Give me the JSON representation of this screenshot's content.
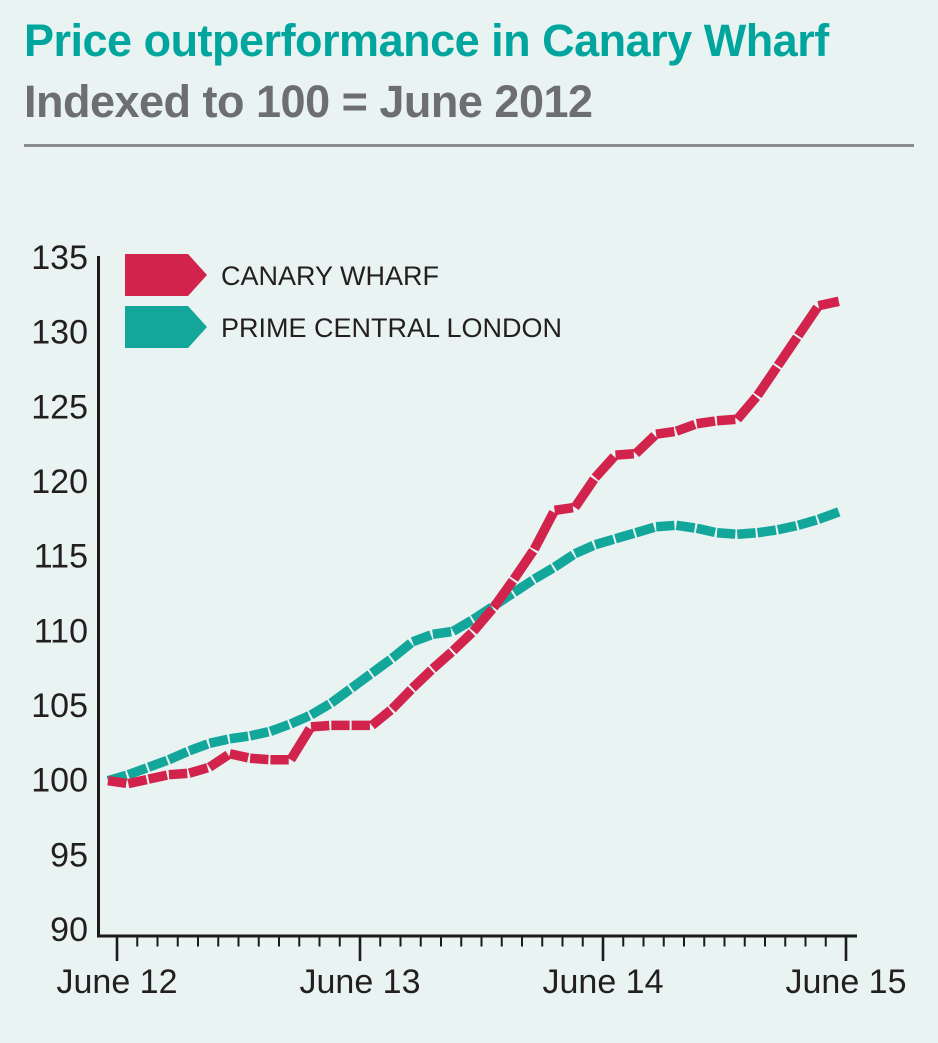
{
  "page": {
    "background": "#e8f3f2"
  },
  "header": {
    "title": "Price outperformance in Canary Wharf",
    "subtitle": "Indexed to 100 = June 2012",
    "title_color": "#00a69d",
    "subtitle_color": "#6d6e71"
  },
  "chart_data": {
    "type": "line",
    "title": "Price outperformance in Canary Wharf",
    "subtitle": "Indexed to 100 = June 2012",
    "grid": false,
    "legend_position": "top-left",
    "ylim": [
      90,
      135
    ],
    "ytick_step": 5,
    "yticks": [
      90,
      95,
      100,
      105,
      110,
      115,
      120,
      125,
      130,
      135
    ],
    "xticks": [
      "June 12",
      "June 13",
      "June 14",
      "June 15"
    ],
    "x_minor_tick_unit": "month",
    "x": [
      "Jun 2012",
      "Jul 2012",
      "Aug 2012",
      "Sep 2012",
      "Oct 2012",
      "Nov 2012",
      "Dec 2012",
      "Jan 2013",
      "Feb 2013",
      "Mar 2013",
      "Apr 2013",
      "May 2013",
      "Jun 2013",
      "Jul 2013",
      "Aug 2013",
      "Sep 2013",
      "Oct 2013",
      "Nov 2013",
      "Dec 2013",
      "Jan 2014",
      "Feb 2014",
      "Mar 2014",
      "Apr 2014",
      "May 2014",
      "Jun 2014",
      "Jul 2014",
      "Aug 2014",
      "Sep 2014",
      "Oct 2014",
      "Nov 2014",
      "Dec 2014",
      "Jan 2015",
      "Feb 2015",
      "Mar 2015",
      "Apr 2015",
      "May 2015",
      "Jun 2015"
    ],
    "series": [
      {
        "name": "CANARY WHARF",
        "color": "#d2234d",
        "values": [
          100.0,
          99.8,
          100.1,
          100.4,
          100.5,
          100.9,
          101.8,
          101.5,
          101.4,
          101.4,
          103.6,
          103.7,
          103.7,
          103.7,
          104.8,
          106.2,
          107.5,
          108.7,
          110.0,
          111.6,
          113.5,
          115.5,
          118.1,
          118.3,
          120.3,
          121.8,
          121.9,
          123.2,
          123.4,
          123.9,
          124.1,
          124.2,
          125.8,
          127.8,
          129.8,
          131.8,
          132.1
        ]
      },
      {
        "name": "PRIME CENTRAL LONDON",
        "color": "#13a79c",
        "values": [
          100.0,
          100.4,
          100.9,
          101.4,
          102.0,
          102.5,
          102.8,
          103.0,
          103.3,
          103.8,
          104.4,
          105.2,
          106.2,
          107.2,
          108.2,
          109.3,
          109.8,
          110.0,
          110.8,
          111.7,
          112.6,
          113.5,
          114.3,
          115.2,
          115.8,
          116.2,
          116.6,
          117.0,
          117.1,
          116.9,
          116.6,
          116.5,
          116.6,
          116.8,
          117.1,
          117.5,
          118.0
        ]
      }
    ],
    "axis_color": "#1b1b1b",
    "label_color": "#231f20"
  }
}
